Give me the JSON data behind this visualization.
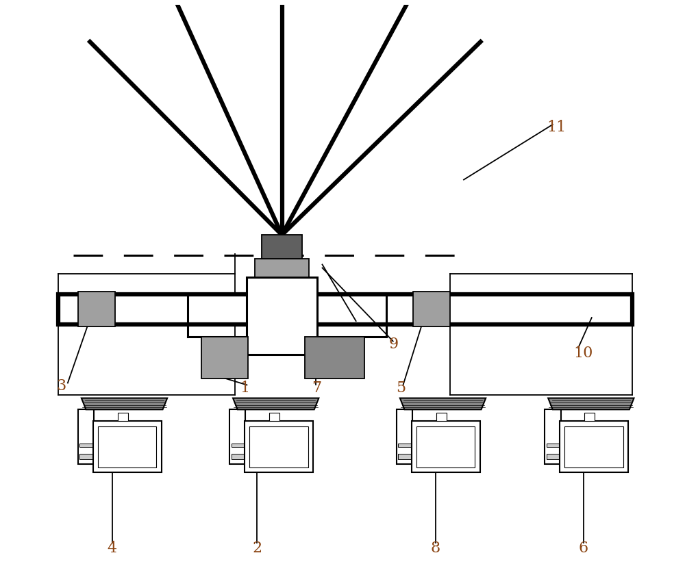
{
  "bg_color": "#ffffff",
  "line_color": "#000000",
  "gray_fill": "#a0a0a0",
  "dark_gray_fill": "#888888",
  "figsize": [
    10.0,
    8.24
  ],
  "label_color": "#8B4513",
  "label_fontsize": 16
}
